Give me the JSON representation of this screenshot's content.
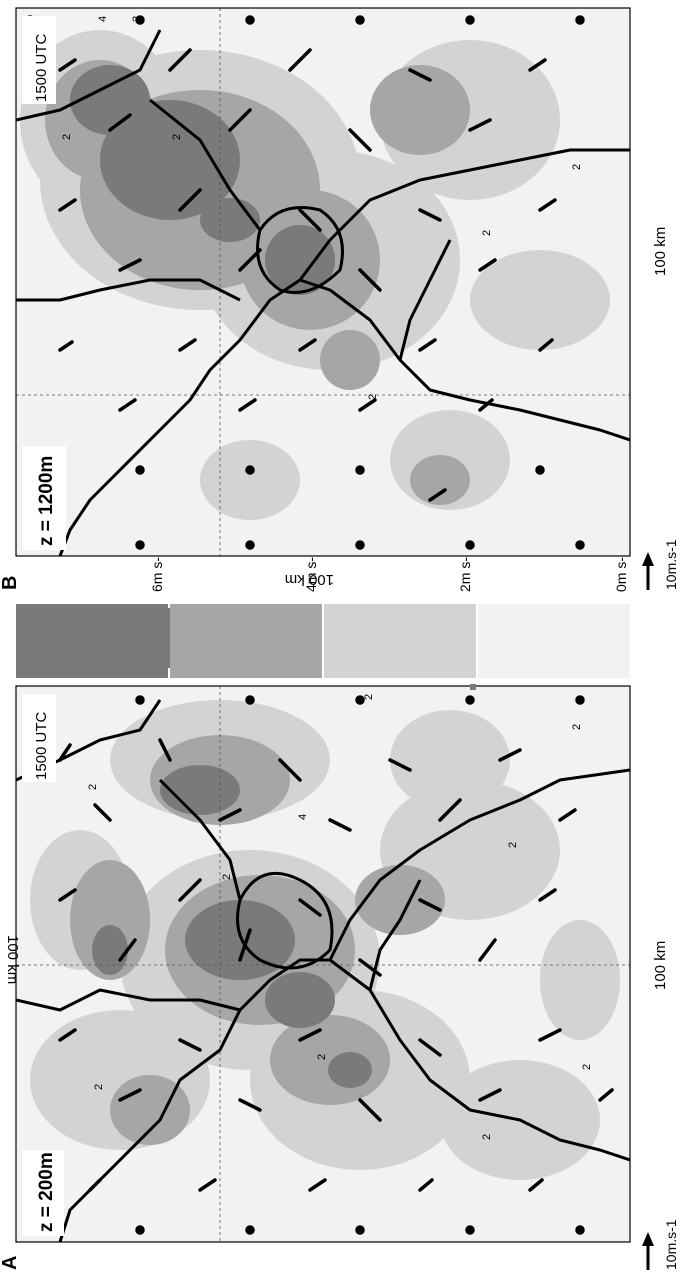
{
  "figure": {
    "orientation": "rotated 90 degrees counter-clockwise",
    "panels": [
      {
        "letter": "A",
        "height_label": "z = 200m",
        "time_label": "1500 UTC",
        "scale_bottom": "100 km",
        "scale_left": "100 km",
        "vector_scale_label": "10m.s-1",
        "contour_labels": [
          "2",
          "2",
          "2",
          "2",
          "2",
          "4",
          "2",
          "2",
          "2",
          "2"
        ]
      },
      {
        "letter": "B",
        "height_label": "z = 1200m",
        "time_label": "1500 UTC",
        "scale_bottom": "100 km",
        "scale_left": "100 km",
        "vector_scale_label": "10m.s-1",
        "contour_labels": [
          "2",
          "2",
          "2",
          "4",
          "2",
          "2",
          "2"
        ]
      }
    ],
    "colorbar": {
      "labels": [
        "6m s-1",
        "4m s-1",
        "2m s-1",
        "0m s-1"
      ],
      "colors": [
        "#7a7a7a",
        "#a6a6a6",
        "#d3d3d3",
        "#f2f2f2"
      ]
    },
    "style": {
      "shade_dark": "#7a7a7a",
      "shade_mid": "#a6a6a6",
      "shade_light": "#d3d3d3",
      "background": "#f2f2f2",
      "border": "#000000"
    }
  }
}
